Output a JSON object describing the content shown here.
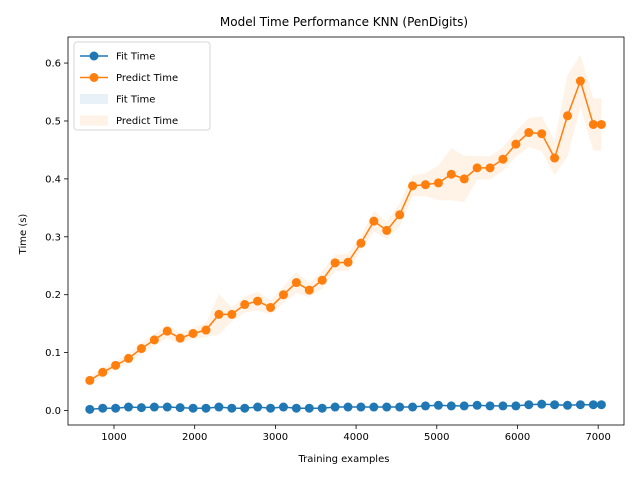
{
  "chart_data": {
    "type": "line",
    "title": "Model Time Performance KNN (PenDigits)",
    "xlabel": "Training examples",
    "ylabel": "Time (s)",
    "xlim": [
      430,
      7320
    ],
    "ylim": [
      -0.025,
      0.645
    ],
    "xticks": [
      1000,
      2000,
      3000,
      4000,
      5000,
      6000,
      7000
    ],
    "yticks": [
      0.0,
      0.1,
      0.2,
      0.3,
      0.4,
      0.5,
      0.6
    ],
    "ytick_labels": [
      "0.0",
      "0.1",
      "0.2",
      "0.3",
      "0.4",
      "0.5",
      "0.6"
    ],
    "grid": false,
    "legend_position": "upper-left",
    "x": [
      700,
      860,
      1020,
      1180,
      1340,
      1500,
      1660,
      1820,
      1980,
      2140,
      2300,
      2460,
      2620,
      2780,
      2940,
      3100,
      3260,
      3420,
      3580,
      3740,
      3900,
      4060,
      4220,
      4380,
      4540,
      4700,
      4860,
      5020,
      5180,
      5340,
      5500,
      5660,
      5820,
      5980,
      6140,
      6300,
      6460,
      6620,
      6780,
      6940,
      7040
    ],
    "series": [
      {
        "name": "Fit Time",
        "color": "#1f77b4",
        "values": [
          0.002,
          0.004,
          0.004,
          0.006,
          0.005,
          0.006,
          0.006,
          0.005,
          0.004,
          0.004,
          0.006,
          0.004,
          0.004,
          0.006,
          0.004,
          0.006,
          0.004,
          0.004,
          0.004,
          0.006,
          0.006,
          0.006,
          0.006,
          0.006,
          0.006,
          0.006,
          0.008,
          0.009,
          0.008,
          0.008,
          0.009,
          0.008,
          0.008,
          0.008,
          0.01,
          0.011,
          0.01,
          0.009,
          0.01,
          0.01,
          0.01
        ],
        "std": [
          0.001,
          0.001,
          0.001,
          0.001,
          0.001,
          0.001,
          0.001,
          0.001,
          0.001,
          0.001,
          0.001,
          0.001,
          0.001,
          0.001,
          0.001,
          0.001,
          0.001,
          0.001,
          0.001,
          0.001,
          0.001,
          0.001,
          0.001,
          0.001,
          0.001,
          0.001,
          0.001,
          0.001,
          0.001,
          0.001,
          0.001,
          0.001,
          0.001,
          0.001,
          0.001,
          0.001,
          0.001,
          0.001,
          0.001,
          0.001,
          0.001
        ]
      },
      {
        "name": "Predict Time",
        "color": "#ff7f0e",
        "values": [
          0.052,
          0.066,
          0.078,
          0.09,
          0.107,
          0.122,
          0.137,
          0.125,
          0.133,
          0.139,
          0.166,
          0.166,
          0.183,
          0.189,
          0.178,
          0.2,
          0.221,
          0.208,
          0.225,
          0.255,
          0.256,
          0.289,
          0.327,
          0.311,
          0.338,
          0.388,
          0.39,
          0.393,
          0.408,
          0.4,
          0.419,
          0.419,
          0.434,
          0.46,
          0.48,
          0.478,
          0.436,
          0.509,
          0.569,
          0.494,
          0.494
        ],
        "std": [
          0.006,
          0.008,
          0.007,
          0.008,
          0.01,
          0.01,
          0.012,
          0.009,
          0.01,
          0.012,
          0.035,
          0.012,
          0.014,
          0.016,
          0.012,
          0.014,
          0.018,
          0.012,
          0.015,
          0.014,
          0.015,
          0.012,
          0.018,
          0.015,
          0.02,
          0.018,
          0.02,
          0.03,
          0.045,
          0.04,
          0.02,
          0.02,
          0.02,
          0.022,
          0.025,
          0.03,
          0.03,
          0.07,
          0.045,
          0.045,
          0.045
        ]
      }
    ],
    "legend": [
      {
        "label": "Fit Time",
        "kind": "line"
      },
      {
        "label": "Predict Time",
        "kind": "line"
      },
      {
        "label": "Fit Time",
        "kind": "band"
      },
      {
        "label": "Predict Time",
        "kind": "band"
      }
    ]
  }
}
